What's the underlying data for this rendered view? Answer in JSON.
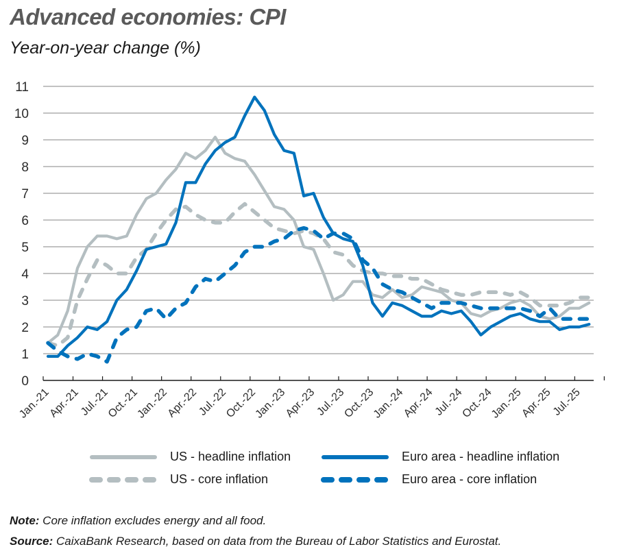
{
  "header": {
    "title": "Advanced economies: CPI",
    "subtitle": "Year-on-year change (%)"
  },
  "legend": [
    {
      "label": "US - headline inflation",
      "color": "#B4BEC1",
      "style": "solid"
    },
    {
      "label": "Euro area - headline inflation",
      "color": "#0072BC",
      "style": "solid"
    },
    {
      "label": "US - core inflation",
      "color": "#B4BEC1",
      "style": "dashed"
    },
    {
      "label": "Euro area - core inflation",
      "color": "#0072BC",
      "style": "dashed"
    }
  ],
  "footer": {
    "note_label": "Note:",
    "note_text": " Core inflation excludes energy and all food.",
    "source_label": "Source:",
    "source_text": " CaixaBank Research, based on data from the Bureau of Labor Statistics and Eurostat."
  },
  "colors": {
    "us": "#B4BEC1",
    "euro": "#0072BC",
    "grid": "#9E9E9E",
    "axis": "#1a1a1a"
  },
  "chart_data": {
    "type": "line",
    "title": "Advanced economies: CPI",
    "subtitle": "Year-on-year change (%)",
    "xlabel": "",
    "ylabel": "Year-on-year change (%)",
    "ylim": [
      0,
      11
    ],
    "yticks": [
      0,
      1,
      2,
      3,
      4,
      5,
      6,
      7,
      8,
      9,
      10,
      11
    ],
    "grid": true,
    "legend_position": "bottom",
    "xtick_labels": [
      "Jan.-21",
      "Apr.-21",
      "Jul.-21",
      "Oct.-21",
      "Jan.-22",
      "Apr.-22",
      "Jul.-22",
      "Oct.-22",
      "Jan.-23",
      "Apr.-23",
      "Jul.-23",
      "Oct.-23",
      "Jan.-24",
      "Apr.-24",
      "Jul.-24",
      "Oct.-24",
      "Jan.-25",
      "Apr.-25",
      "Jul.-25"
    ],
    "x_start": "Jan.-21",
    "x_end": "Aug.-25",
    "frequency": "monthly",
    "series": [
      {
        "name": "US - headline inflation",
        "color": "#B4BEC1",
        "dash": false,
        "values": [
          1.4,
          1.7,
          2.6,
          4.2,
          5.0,
          5.4,
          5.4,
          5.3,
          5.4,
          6.2,
          6.8,
          7.0,
          7.5,
          7.9,
          8.5,
          8.3,
          8.6,
          9.1,
          8.5,
          8.3,
          8.2,
          7.7,
          7.1,
          6.5,
          6.4,
          6.0,
          5.0,
          4.9,
          4.0,
          3.0,
          3.2,
          3.7,
          3.7,
          3.2,
          3.1,
          3.4,
          3.1,
          3.2,
          3.5,
          3.4,
          3.3,
          3.0,
          2.9,
          2.5,
          2.4,
          2.6,
          2.7,
          2.9,
          3.0,
          2.8,
          2.4,
          2.3,
          2.4,
          2.7,
          2.7,
          2.9
        ]
      },
      {
        "name": "US - core inflation",
        "color": "#B4BEC1",
        "dash": true,
        "values": [
          1.4,
          1.3,
          1.6,
          3.0,
          3.8,
          4.5,
          4.3,
          4.0,
          4.0,
          4.6,
          4.9,
          5.5,
          6.0,
          6.4,
          6.5,
          6.2,
          6.0,
          5.9,
          5.9,
          6.3,
          6.6,
          6.3,
          6.0,
          5.7,
          5.6,
          5.5,
          5.6,
          5.5,
          5.3,
          4.8,
          4.7,
          4.3,
          4.1,
          4.0,
          4.0,
          3.9,
          3.9,
          3.8,
          3.8,
          3.6,
          3.4,
          3.3,
          3.2,
          3.2,
          3.3,
          3.3,
          3.3,
          3.2,
          3.3,
          3.1,
          2.8,
          2.8,
          2.8,
          2.9,
          3.1,
          3.1
        ]
      },
      {
        "name": "Euro area - headline inflation",
        "color": "#0072BC",
        "dash": false,
        "values": [
          0.9,
          0.9,
          1.3,
          1.6,
          2.0,
          1.9,
          2.2,
          3.0,
          3.4,
          4.1,
          4.9,
          5.0,
          5.1,
          5.9,
          7.4,
          7.4,
          8.1,
          8.6,
          8.9,
          9.1,
          9.9,
          10.6,
          10.1,
          9.2,
          8.6,
          8.5,
          6.9,
          7.0,
          6.1,
          5.5,
          5.3,
          5.2,
          4.3,
          2.9,
          2.4,
          2.9,
          2.8,
          2.6,
          2.4,
          2.4,
          2.6,
          2.5,
          2.6,
          2.2,
          1.7,
          2.0,
          2.2,
          2.4,
          2.5,
          2.3,
          2.2,
          2.2,
          1.9,
          2.0,
          2.0,
          2.1
        ]
      },
      {
        "name": "Euro area - core inflation",
        "color": "#0072BC",
        "dash": true,
        "values": [
          1.4,
          1.1,
          0.9,
          0.8,
          1.0,
          0.9,
          0.7,
          1.6,
          1.9,
          2.0,
          2.6,
          2.7,
          2.3,
          2.7,
          2.9,
          3.5,
          3.8,
          3.7,
          4.0,
          4.3,
          4.8,
          5.0,
          5.0,
          5.2,
          5.3,
          5.6,
          5.7,
          5.6,
          5.3,
          5.5,
          5.5,
          5.3,
          4.5,
          4.2,
          3.6,
          3.4,
          3.3,
          3.1,
          2.9,
          2.7,
          2.9,
          2.9,
          2.9,
          2.8,
          2.7,
          2.7,
          2.7,
          2.7,
          2.7,
          2.6,
          2.4,
          2.7,
          2.3,
          2.3,
          2.3,
          2.3
        ]
      }
    ]
  }
}
